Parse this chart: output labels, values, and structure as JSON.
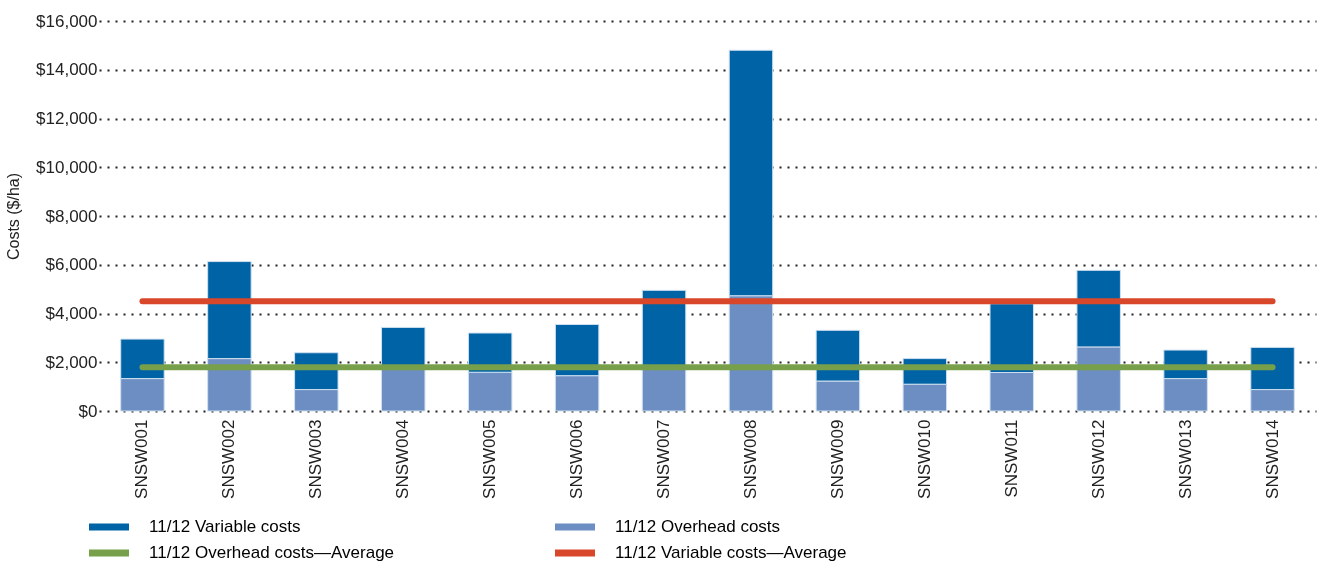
{
  "chart_data": {
    "type": "bar",
    "stacked": true,
    "ylabel": "Costs ($/ha)",
    "categories": [
      "SNSW001",
      "SNSW002",
      "SNSW003",
      "SNSW004",
      "SNSW005",
      "SNSW006",
      "SNSW007",
      "SNSW008",
      "SNSW009",
      "SNSW010",
      "SNSW011",
      "SNSW012",
      "SNSW013",
      "SNSW014"
    ],
    "series": [
      {
        "name": "11/12 Overhead costs",
        "color": "#6d8ec2",
        "values": [
          1330,
          2150,
          880,
          1750,
          1590,
          1450,
          1800,
          4730,
          1230,
          1100,
          1580,
          2630,
          1330,
          880
        ]
      },
      {
        "name": "11/12 Variable costs",
        "color": "#0063a6",
        "values": [
          1620,
          3980,
          1510,
          1680,
          1610,
          2100,
          3150,
          10070,
          2080,
          1050,
          2820,
          3140,
          1170,
          1730
        ]
      },
      {
        "name": "11/12 Overhead costs—Average",
        "type": "line",
        "color": "#78a04a",
        "values": [
          1800,
          1800,
          1800,
          1800,
          1800,
          1800,
          1800,
          1800,
          1800,
          1800,
          1800,
          1800,
          1800,
          1800
        ]
      },
      {
        "name": "11/12 Variable costs—Average",
        "type": "line",
        "color": "#d9472b",
        "values": [
          4500,
          4500,
          4500,
          4500,
          4500,
          4500,
          4500,
          4500,
          4500,
          4500,
          4500,
          4500,
          4500,
          4500
        ]
      }
    ],
    "ylim": [
      0,
      16000
    ],
    "yticks": [
      {
        "value": 0,
        "label": "$0"
      },
      {
        "value": 2000,
        "label": "$2,000"
      },
      {
        "value": 4000,
        "label": "$4,000"
      },
      {
        "value": 6000,
        "label": "$6,000"
      },
      {
        "value": 8000,
        "label": "$8,000"
      },
      {
        "value": 10000,
        "label": "$10,000"
      },
      {
        "value": 12000,
        "label": "$12,000"
      },
      {
        "value": 14000,
        "label": "$14,000"
      },
      {
        "value": 16000,
        "label": "$16,000"
      }
    ],
    "grid": "y",
    "legend": "bottom"
  }
}
